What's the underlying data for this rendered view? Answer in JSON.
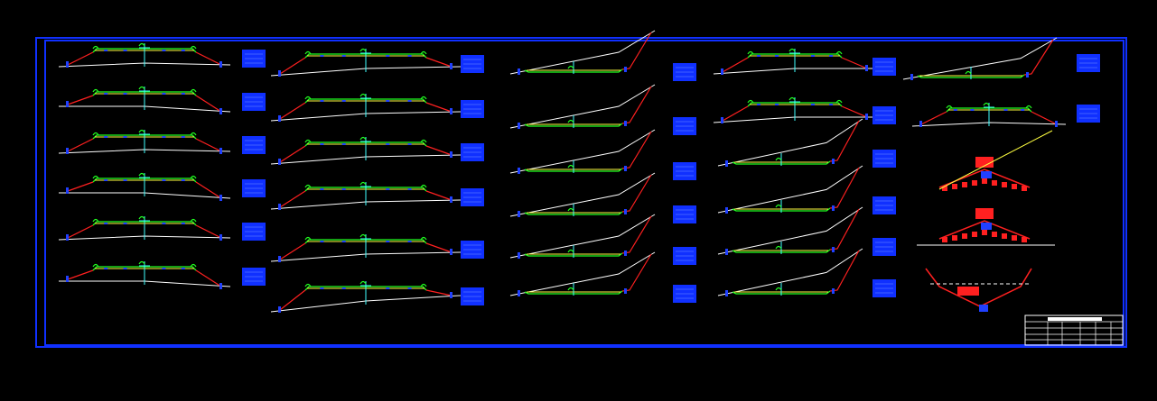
{
  "drawing": {
    "background": "#000000",
    "frame_color": "#1030ff",
    "colors": {
      "ground": "#ffffff",
      "slope": "#ff2020",
      "road": "#20ff20",
      "detail": "#ffff40",
      "axis": "#40ffff",
      "marker": "#2040ff",
      "label_box": "#1030ff"
    }
  }
}
